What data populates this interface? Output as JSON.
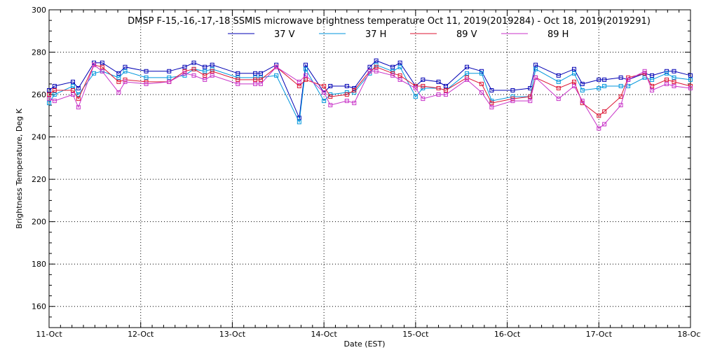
{
  "chart_data": {
    "type": "line",
    "title": "DMSP F-15,-16,-17,-18 SSMIS microwave brightness temperature Oct 11, 2019(2019284) - Oct 18, 2019(2019291)",
    "xlabel": "Date (EST)",
    "ylabel": "Brightness Temperature, Deg K",
    "xlim": [
      0,
      7
    ],
    "ylim": [
      150,
      300
    ],
    "x_ticks": [
      {
        "value": 0,
        "label": "11-Oct"
      },
      {
        "value": 1,
        "label": "12-Oct"
      },
      {
        "value": 2,
        "label": "13-Oct"
      },
      {
        "value": 3,
        "label": "14-Oct"
      },
      {
        "value": 4,
        "label": "15-Oct"
      },
      {
        "value": 5,
        "label": "16-Oct"
      },
      {
        "value": 6,
        "label": "17-Oct"
      },
      {
        "value": 7,
        "label": "18-Oct"
      }
    ],
    "y_ticks": [
      160,
      180,
      200,
      220,
      240,
      260,
      280,
      300
    ],
    "grid": true,
    "legend": "top-center",
    "x": [
      0.0,
      0.06,
      0.26,
      0.32,
      0.49,
      0.58,
      0.76,
      0.83,
      1.06,
      1.31,
      1.48,
      1.58,
      1.7,
      1.78,
      2.06,
      2.25,
      2.31,
      2.48,
      2.73,
      2.8,
      3.0,
      3.07,
      3.25,
      3.33,
      3.5,
      3.57,
      3.75,
      3.83,
      4.0,
      4.08,
      4.25,
      4.33,
      4.56,
      4.72,
      4.83,
      5.06,
      5.25,
      5.31,
      5.56,
      5.73,
      5.82,
      6.0,
      6.06,
      6.24,
      6.32,
      6.5,
      6.58,
      6.74,
      6.82,
      7.0
    ],
    "series": [
      {
        "name": "37 V",
        "color": "#0000b4",
        "values": [
          262,
          264,
          266,
          263,
          275,
          275,
          270,
          273,
          271,
          271,
          273,
          275,
          273,
          274,
          270,
          270,
          270,
          274,
          249,
          274,
          261,
          264,
          264,
          263,
          273,
          276,
          273,
          275,
          264,
          267,
          266,
          264,
          273,
          271,
          262,
          262,
          263,
          274,
          269,
          272,
          265,
          267,
          267,
          268,
          267,
          270,
          269,
          271,
          271,
          269
        ]
      },
      {
        "name": "37 H",
        "color": "#0096dc",
        "values": [
          256,
          260,
          264,
          260,
          270,
          271,
          268,
          271,
          268,
          268,
          269,
          272,
          271,
          272,
          268,
          268,
          268,
          269,
          247,
          272,
          257,
          260,
          261,
          261,
          270,
          274,
          271,
          273,
          259,
          263,
          263,
          262,
          270,
          270,
          257,
          259,
          259,
          272,
          266,
          270,
          262,
          263,
          264,
          264,
          264,
          268,
          267,
          270,
          268,
          267
        ]
      },
      {
        "name": "89 V",
        "color": "#dc1432",
        "values": [
          260,
          262,
          262,
          258,
          274,
          273,
          266,
          267,
          266,
          266,
          271,
          272,
          269,
          271,
          267,
          267,
          267,
          273,
          264,
          267,
          264,
          259,
          260,
          262,
          271,
          273,
          270,
          269,
          264,
          264,
          263,
          262,
          268,
          265,
          256,
          258,
          259,
          268,
          263,
          266,
          256,
          250,
          252,
          259,
          268,
          270,
          264,
          267,
          266,
          264
        ]
      },
      {
        "name": "89 H",
        "color": "#c832c8",
        "values": [
          258,
          257,
          260,
          254,
          274,
          271,
          261,
          266,
          265,
          266,
          270,
          269,
          267,
          269,
          265,
          265,
          265,
          273,
          266,
          269,
          261,
          255,
          257,
          256,
          271,
          271,
          269,
          267,
          263,
          258,
          260,
          260,
          267,
          261,
          254,
          257,
          257,
          268,
          258,
          264,
          257,
          244,
          246,
          255,
          267,
          271,
          262,
          265,
          264,
          263
        ]
      }
    ]
  }
}
